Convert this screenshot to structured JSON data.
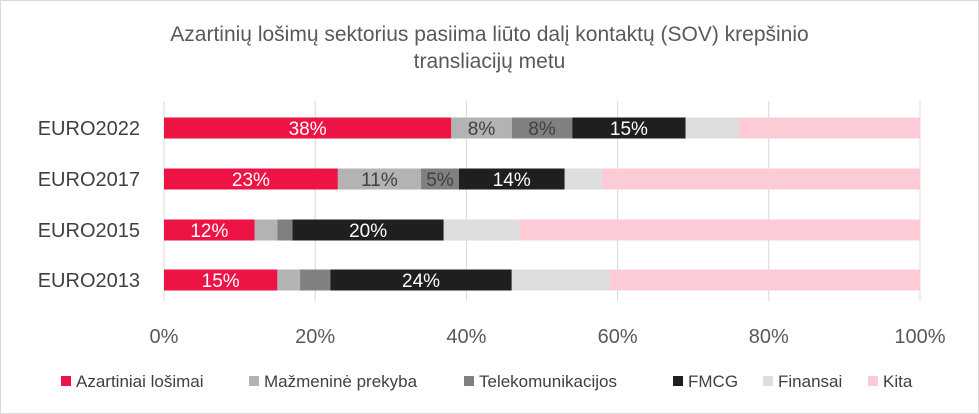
{
  "chart_data": {
    "type": "bar",
    "orientation": "horizontal",
    "stacked": "percent",
    "title_line1": "Azartinių lošimų sektorius pasiima liūto dalį kontaktų (SOV) krepšinio",
    "title_line2": "transliacijų metu",
    "categories": [
      "EURO2022",
      "EURO2017",
      "EURO2015",
      "EURO2013"
    ],
    "xlim": [
      0,
      100
    ],
    "x_ticks": [
      "0%",
      "20%",
      "40%",
      "60%",
      "80%",
      "100%"
    ],
    "grid": true,
    "legend_position": "bottom",
    "series": [
      {
        "name": "Azartiniai lošimai",
        "color": "#ed1345",
        "label_color": "#ffffff",
        "values": [
          38,
          23,
          12,
          15
        ],
        "labels": [
          "38%",
          "23%",
          "12%",
          "15%"
        ]
      },
      {
        "name": "Mažmeninė prekyba",
        "color": "#b3b3b3",
        "label_color": "#404040",
        "values": [
          8,
          11,
          3,
          3
        ],
        "labels": [
          "8%",
          "11%",
          "",
          ""
        ]
      },
      {
        "name": "Telekomunikacijos",
        "color": "#808080",
        "label_color": "#404040",
        "values": [
          8,
          5,
          2,
          4
        ],
        "labels": [
          "8%",
          "5%",
          "",
          ""
        ]
      },
      {
        "name": "FMCG",
        "color": "#1f1f1f",
        "label_color": "#ffffff",
        "values": [
          15,
          14,
          20,
          24
        ],
        "labels": [
          "15%",
          "14%",
          "20%",
          "24%"
        ]
      },
      {
        "name": "Finansai",
        "color": "#dedede",
        "label_color": "#404040",
        "values": [
          7,
          5,
          10,
          13
        ],
        "labels": [
          "",
          "",
          "",
          ""
        ]
      },
      {
        "name": "Kita",
        "color": "#fdcbd6",
        "label_color": "#404040",
        "values": [
          24,
          42,
          53,
          41
        ],
        "labels": [
          "",
          "",
          "",
          ""
        ]
      }
    ]
  }
}
